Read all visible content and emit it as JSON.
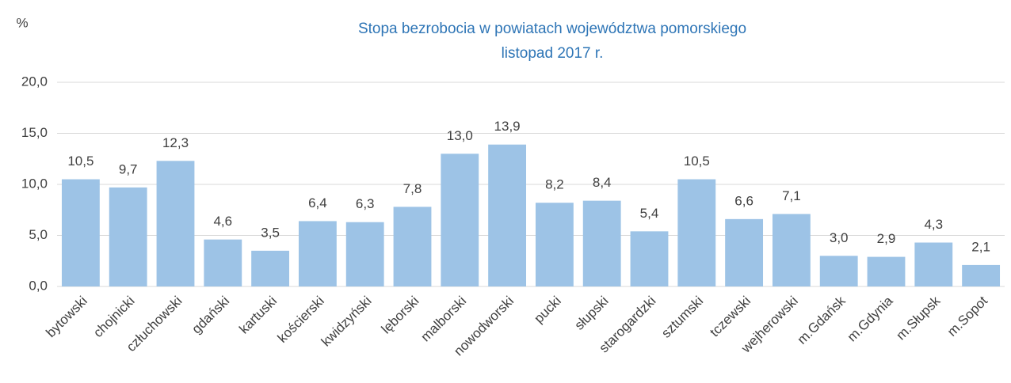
{
  "chart_data": {
    "type": "bar",
    "title": "Stopa bezrobocia w powiatach województwa pomorskiego",
    "subtitle": "listopad 2017 r.",
    "y_label": "%",
    "categories": [
      "bytowski",
      "chojnicki",
      "człuchowski",
      "gdański",
      "kartuski",
      "kościerski",
      "kwidzyński",
      "lęborski",
      "malborski",
      "nowodworski",
      "pucki",
      "słupski",
      "starogardzki",
      "sztumski",
      "tczewski",
      "wejherowski",
      "m.Gdańsk",
      "m.Gdynia",
      "m.Słupsk",
      "m.Sopot"
    ],
    "values": [
      10.5,
      9.7,
      12.3,
      4.6,
      3.5,
      6.4,
      6.3,
      7.8,
      13.0,
      13.9,
      8.2,
      8.4,
      5.4,
      10.5,
      6.6,
      7.1,
      3.0,
      2.9,
      4.3,
      2.1
    ],
    "value_labels": [
      "10,5",
      "9,7",
      "12,3",
      "4,6",
      "3,5",
      "6,4",
      "6,3",
      "7,8",
      "13,0",
      "13,9",
      "8,2",
      "8,4",
      "5,4",
      "10,5",
      "6,6",
      "7,1",
      "3,0",
      "2,9",
      "4,3",
      "2,1"
    ],
    "color": "#9dc3e6",
    "ylim": [
      0,
      20
    ],
    "yticks": [
      {
        "value": 0,
        "label": "0,0"
      },
      {
        "value": 5,
        "label": "5,0"
      },
      {
        "value": 10,
        "label": "10,0"
      },
      {
        "value": 15,
        "label": "15,0"
      },
      {
        "value": 20,
        "label": "20,0"
      }
    ],
    "grid": true
  }
}
